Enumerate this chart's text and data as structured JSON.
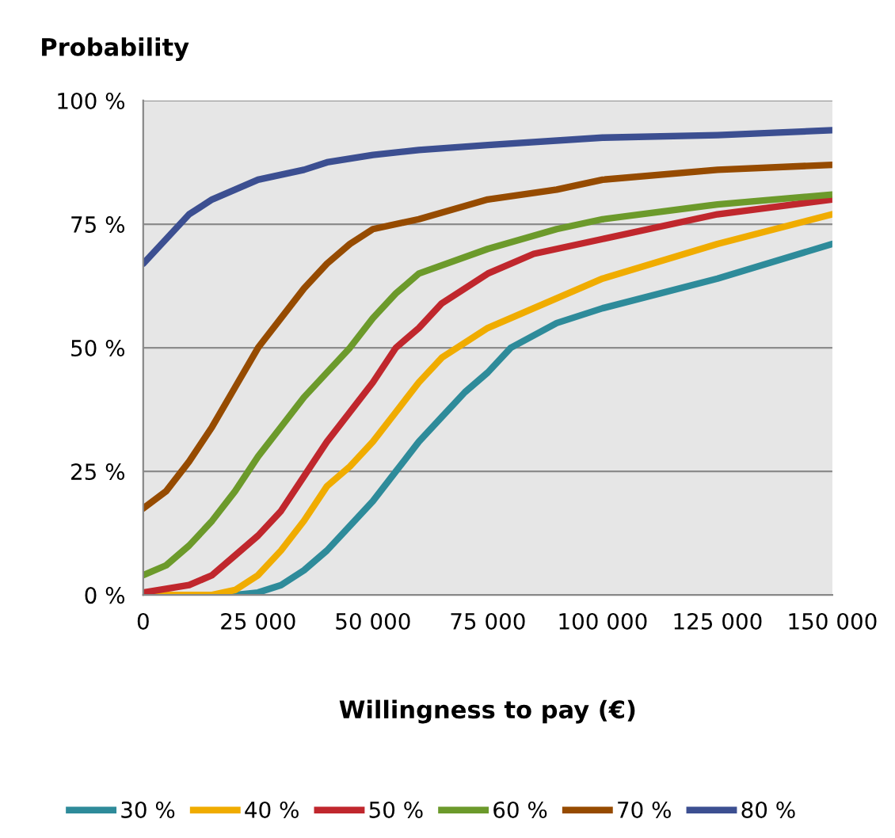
{
  "chart_data": {
    "type": "line",
    "xlabel": "Willingness to pay (€)",
    "ylabel": "Probability",
    "xlim": [
      0,
      150000
    ],
    "ylim": [
      0,
      100
    ],
    "xticks": [
      {
        "value": 0,
        "label": "0"
      },
      {
        "value": 25000,
        "label": "25 000"
      },
      {
        "value": 50000,
        "label": "50 000"
      },
      {
        "value": 75000,
        "label": "75 000"
      },
      {
        "value": 100000,
        "label": "100 000"
      },
      {
        "value": 125000,
        "label": "125 000"
      },
      {
        "value": 150000,
        "label": "150 000"
      }
    ],
    "yticks": [
      {
        "value": 0,
        "label": "0 %"
      },
      {
        "value": 25,
        "label": "25 %"
      },
      {
        "value": 50,
        "label": "50 %"
      },
      {
        "value": 75,
        "label": "75 %"
      },
      {
        "value": 100,
        "label": "100 %"
      }
    ],
    "grid": "y",
    "legend": "bottom",
    "marker": "none",
    "line_style": "solid",
    "series": [
      {
        "name": "30 %",
        "color": "#2e8b9a",
        "x": [
          0,
          10000,
          20000,
          25000,
          30000,
          35000,
          40000,
          45000,
          50000,
          55000,
          60000,
          65000,
          70000,
          75000,
          80000,
          90000,
          100000,
          125000,
          150000
        ],
        "values": [
          0,
          0,
          0,
          0.5,
          2,
          5,
          9,
          14,
          19,
          25,
          31,
          36,
          41,
          45,
          50,
          55,
          58,
          64,
          71
        ]
      },
      {
        "name": "40 %",
        "color": "#f0ac00",
        "x": [
          0,
          10000,
          15000,
          20000,
          25000,
          30000,
          35000,
          40000,
          45000,
          50000,
          55000,
          60000,
          65000,
          75000,
          85000,
          100000,
          125000,
          150000
        ],
        "values": [
          0,
          0,
          0,
          1,
          4,
          9,
          15,
          22,
          26,
          31,
          37,
          43,
          48,
          54,
          58,
          64,
          71,
          77
        ]
      },
      {
        "name": "50 %",
        "color": "#c0272d",
        "x": [
          0,
          10000,
          15000,
          20000,
          25000,
          30000,
          35000,
          40000,
          45000,
          50000,
          55000,
          60000,
          65000,
          75000,
          85000,
          100000,
          125000,
          150000
        ],
        "values": [
          0.5,
          2,
          4,
          8,
          12,
          17,
          24,
          31,
          37,
          43,
          50,
          54,
          59,
          65,
          69,
          72,
          77,
          80
        ]
      },
      {
        "name": "60 %",
        "color": "#6c9a2b",
        "x": [
          0,
          5000,
          10000,
          15000,
          20000,
          25000,
          30000,
          35000,
          40000,
          45000,
          50000,
          55000,
          60000,
          75000,
          90000,
          100000,
          125000,
          150000
        ],
        "values": [
          4,
          6,
          10,
          15,
          21,
          28,
          34,
          40,
          45,
          50,
          56,
          61,
          65,
          70,
          74,
          76,
          79,
          81
        ]
      },
      {
        "name": "70 %",
        "color": "#964b00",
        "x": [
          0,
          5000,
          10000,
          15000,
          20000,
          25000,
          30000,
          35000,
          40000,
          45000,
          50000,
          60000,
          75000,
          90000,
          100000,
          125000,
          150000
        ],
        "values": [
          17.5,
          21,
          27,
          34,
          42,
          50,
          56,
          62,
          67,
          71,
          74,
          76,
          80,
          82,
          84,
          86,
          87
        ]
      },
      {
        "name": "80 %",
        "color": "#3c4f91",
        "x": [
          0,
          5000,
          10000,
          15000,
          20000,
          25000,
          30000,
          35000,
          40000,
          50000,
          60000,
          75000,
          100000,
          125000,
          150000
        ],
        "values": [
          67,
          72,
          77,
          80,
          82,
          84,
          85,
          86,
          87.5,
          89,
          90,
          91,
          92.5,
          93,
          94
        ]
      }
    ]
  }
}
